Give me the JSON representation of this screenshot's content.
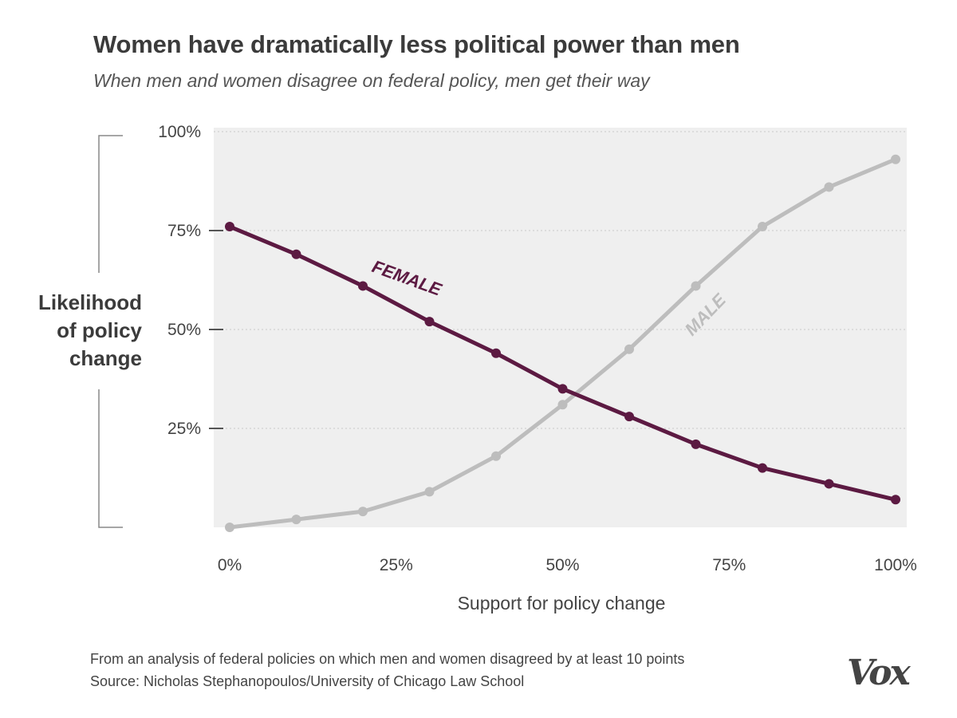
{
  "chart_data": {
    "type": "line",
    "title": "Women have dramatically less political power than men",
    "subtitle": "When men and women disagree on federal policy, men get their way",
    "xlabel": "Support for policy change",
    "ylabel": [
      "Likelihood",
      "of policy",
      "change"
    ],
    "x": [
      0,
      10,
      20,
      30,
      40,
      50,
      60,
      70,
      80,
      90,
      100
    ],
    "xlim": [
      0,
      100
    ],
    "ylim": [
      0,
      100
    ],
    "x_ticks": [
      0,
      25,
      50,
      75,
      100
    ],
    "x_tick_labels": [
      "0%",
      "25%",
      "50%",
      "75%",
      "100%"
    ],
    "y_ticks": [
      25,
      50,
      75,
      100
    ],
    "y_tick_labels": [
      "25%",
      "50%",
      "75%",
      "100%"
    ],
    "series": [
      {
        "name": "FEMALE",
        "color": "#5c1a42",
        "values": [
          76,
          69,
          61,
          52,
          44,
          35,
          28,
          21,
          15,
          11,
          7
        ]
      },
      {
        "name": "MALE",
        "color": "#bdbdbd",
        "values": [
          0,
          2,
          4,
          9,
          18,
          31,
          45,
          61,
          76,
          86,
          93
        ]
      }
    ],
    "grid": true,
    "plot_background": "#efefef"
  },
  "footnote": {
    "line1": "From an analysis of federal policies on which men and women disagreed by at least 10 points",
    "line2": "Source: Nicholas Stephanopoulos/University of Chicago Law School"
  },
  "logo": "Vox"
}
